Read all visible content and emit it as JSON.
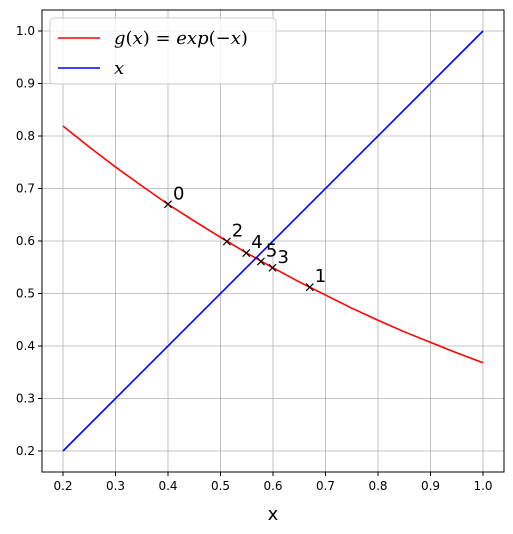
{
  "chart_data": {
    "type": "line",
    "xlabel": "x",
    "ylabel": "",
    "xlim": [
      0.16,
      1.04
    ],
    "ylim": [
      0.16,
      1.04
    ],
    "grid": true,
    "legend_position": "top-left",
    "x_ticks": [
      "0.2",
      "0.3",
      "0.4",
      "0.5",
      "0.6",
      "0.7",
      "0.8",
      "0.9",
      "1.0"
    ],
    "y_ticks": [
      "0.2",
      "0.3",
      "0.4",
      "0.5",
      "0.6",
      "0.7",
      "0.8",
      "0.9",
      "1.0"
    ],
    "series": [
      {
        "name": "g(x) = exp(−x)",
        "legend_parts": [
          "g",
          "(",
          "x",
          ")",
          " = ",
          "exp",
          "(",
          "−",
          "x",
          ")"
        ],
        "color": "#ff0000",
        "x": [
          0.2,
          0.25,
          0.3,
          0.35,
          0.4,
          0.45,
          0.5,
          0.55,
          0.6,
          0.65,
          0.7,
          0.75,
          0.8,
          0.85,
          0.9,
          0.95,
          1.0
        ],
        "y": [
          0.819,
          0.779,
          0.741,
          0.705,
          0.67,
          0.638,
          0.607,
          0.577,
          0.549,
          0.522,
          0.497,
          0.472,
          0.449,
          0.427,
          0.407,
          0.387,
          0.368
        ]
      },
      {
        "name": "x",
        "color": "#0000ff",
        "x": [
          0.2,
          1.0
        ],
        "y": [
          0.2,
          1.0
        ]
      }
    ],
    "iterates": [
      {
        "label": "0",
        "x": 0.4,
        "y": 0.67
      },
      {
        "label": "1",
        "x": 0.67,
        "y": 0.512
      },
      {
        "label": "2",
        "x": 0.512,
        "y": 0.599
      },
      {
        "label": "3",
        "x": 0.599,
        "y": 0.549
      },
      {
        "label": "4",
        "x": 0.549,
        "y": 0.577
      },
      {
        "label": "5",
        "x": 0.577,
        "y": 0.561
      }
    ]
  }
}
